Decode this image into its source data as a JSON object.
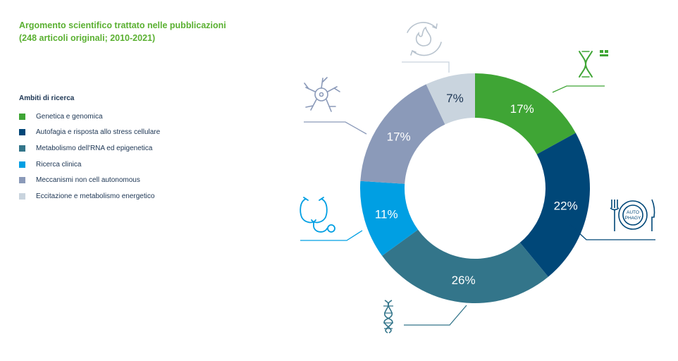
{
  "header": {
    "title": "Argomento scientifico trattato nelle pubblicazioni",
    "subtitle": "(248 articoli originali; 2010-2021)"
  },
  "legend": {
    "title": "Ambiti di ricerca"
  },
  "chart_data": {
    "type": "pie",
    "variant": "donut",
    "title": "Argomento scientifico trattato nelle pubblicazioni",
    "subtitle": "(248 articoli originali; 2010-2021)",
    "legend_title": "Ambiti di ricerca",
    "legend_placement": "left",
    "categories": [
      "Genetica e genomica",
      "Autofagia e risposta allo stress cellulare",
      "Metabolismo dell'RNA ed epigenetica",
      "Ricerca clinica",
      "Meccanismi non cell autonomous",
      "Eccitazione e metabolismo energetico"
    ],
    "values": [
      17,
      22,
      26,
      11,
      17,
      7
    ],
    "labels": [
      "17%",
      "22%",
      "26%",
      "11%",
      "17%",
      "7%"
    ],
    "colors": [
      "#3fa535",
      "#004778",
      "#33758a",
      "#009fe3",
      "#8b9ab9",
      "#c9d4de"
    ],
    "icons": [
      "chromosome-icon",
      "autophagy-plate-icon",
      "dna-icon",
      "stethoscope-icon",
      "neuron-icon",
      "energy-flame-icon"
    ],
    "autophagy_icon_text": [
      "AUTO",
      "PHAGY"
    ]
  }
}
